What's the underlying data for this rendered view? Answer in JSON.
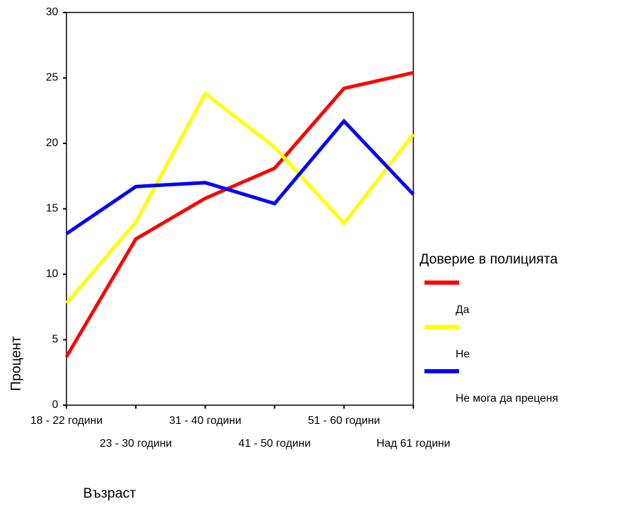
{
  "chart_data": {
    "type": "line",
    "x_label": "Възраст",
    "y_label": "Процент",
    "legend_title": "Доверие в полицията",
    "categories": [
      "18 - 22 години",
      "23 - 30 години",
      "31 - 40 години",
      "41 - 50 години",
      "51 - 60 години",
      "Над 61 години"
    ],
    "series": [
      {
        "name": "Да",
        "color": "#ff0000",
        "values": [
          3.7,
          12.7,
          15.8,
          18.1,
          24.2,
          25.4
        ]
      },
      {
        "name": "Не",
        "color": "#ffff00",
        "values": [
          7.8,
          14.0,
          23.8,
          19.7,
          13.9,
          20.7
        ]
      },
      {
        "name": "Не мога да преценя",
        "color": "#0000ff",
        "values": [
          13.1,
          16.7,
          17.0,
          15.4,
          21.7,
          16.1
        ]
      }
    ],
    "ylim": [
      0,
      30
    ],
    "yticks": [
      0,
      5,
      10,
      15,
      20,
      25,
      30
    ]
  }
}
